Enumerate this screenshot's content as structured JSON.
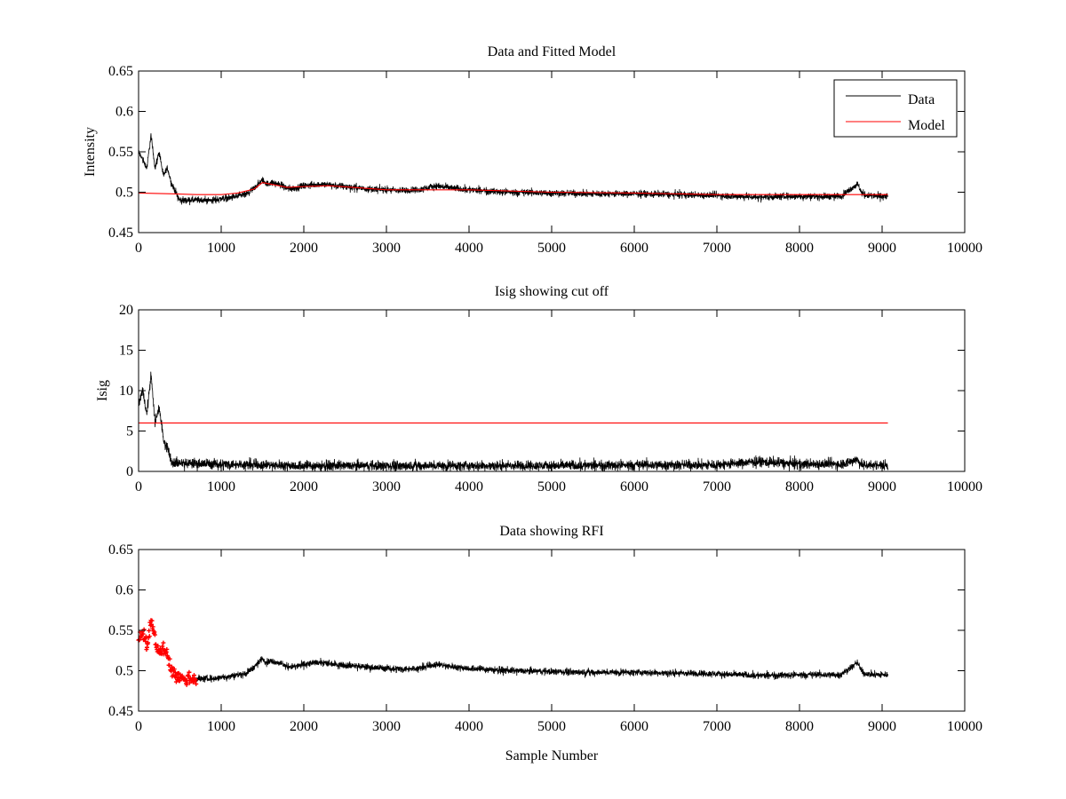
{
  "chart_data": [
    {
      "type": "line",
      "title": "Data and Fitted Model",
      "xlabel": "",
      "ylabel": "Intensity",
      "xlim": [
        0,
        10000
      ],
      "ylim": [
        0.45,
        0.65
      ],
      "xticks": [
        0,
        1000,
        2000,
        3000,
        4000,
        5000,
        6000,
        7000,
        8000,
        9000,
        10000
      ],
      "yticks": [
        0.45,
        0.5,
        0.55,
        0.6,
        0.65
      ],
      "xtick_labels": [
        "0",
        "1000",
        "2000",
        "3000",
        "4000",
        "5000",
        "6000",
        "7000",
        "8000",
        "9000",
        "10000"
      ],
      "ytick_labels": [
        "0.45",
        "0.5",
        "0.55",
        "0.6",
        "0.65"
      ],
      "legend": {
        "placement": "top-right",
        "entries": [
          "Data",
          "Model"
        ]
      },
      "series": [
        {
          "name": "Data",
          "color": "#000000",
          "x": [
            0,
            50,
            100,
            150,
            200,
            250,
            300,
            350,
            400,
            450,
            500,
            600,
            700,
            800,
            900,
            1000,
            1100,
            1200,
            1300,
            1400,
            1450,
            1500,
            1550,
            1600,
            1700,
            1800,
            1900,
            2000,
            2200,
            2400,
            2600,
            2800,
            3000,
            3200,
            3400,
            3600,
            3800,
            4000,
            4500,
            5000,
            5500,
            6000,
            6500,
            7000,
            7500,
            8000,
            8500,
            8700,
            8750,
            8800,
            9000,
            9070
          ],
          "y": [
            0.55,
            0.54,
            0.53,
            0.57,
            0.53,
            0.55,
            0.52,
            0.53,
            0.51,
            0.5,
            0.49,
            0.49,
            0.49,
            0.49,
            0.49,
            0.492,
            0.493,
            0.495,
            0.497,
            0.505,
            0.51,
            0.515,
            0.51,
            0.512,
            0.51,
            0.505,
            0.505,
            0.508,
            0.51,
            0.508,
            0.506,
            0.504,
            0.503,
            0.502,
            0.503,
            0.508,
            0.505,
            0.503,
            0.5,
            0.499,
            0.498,
            0.498,
            0.497,
            0.496,
            0.494,
            0.495,
            0.495,
            0.51,
            0.5,
            0.496,
            0.495,
            0.495
          ],
          "noise": 0.006
        },
        {
          "name": "Model",
          "color": "#ff0000",
          "x": [
            0,
            400,
            700,
            1000,
            1200,
            1400,
            1500,
            1600,
            1800,
            2000,
            2300,
            2600,
            3000,
            3500,
            4000,
            5000,
            6000,
            7000,
            8000,
            8500,
            9070
          ],
          "y": [
            0.499,
            0.498,
            0.497,
            0.497,
            0.499,
            0.504,
            0.512,
            0.51,
            0.506,
            0.507,
            0.508,
            0.506,
            0.503,
            0.503,
            0.503,
            0.5,
            0.499,
            0.497,
            0.497,
            0.497,
            0.497
          ]
        }
      ]
    },
    {
      "type": "line",
      "title": "Isig showing cut off",
      "xlabel": "",
      "ylabel": "Isig",
      "xlim": [
        0,
        10000
      ],
      "ylim": [
        0,
        20
      ],
      "xticks": [
        0,
        1000,
        2000,
        3000,
        4000,
        5000,
        6000,
        7000,
        8000,
        9000,
        10000
      ],
      "yticks": [
        0,
        5,
        10,
        15,
        20
      ],
      "xtick_labels": [
        "0",
        "1000",
        "2000",
        "3000",
        "4000",
        "5000",
        "6000",
        "7000",
        "8000",
        "9000",
        "10000"
      ],
      "ytick_labels": [
        "0",
        "5",
        "10",
        "15",
        "20"
      ],
      "series": [
        {
          "color": "#000000",
          "x": [
            0,
            50,
            100,
            150,
            200,
            250,
            300,
            350,
            400,
            500,
            1000,
            1500,
            2000,
            3000,
            4000,
            5000,
            6000,
            7000,
            7500,
            8000,
            8500,
            8700,
            8750,
            8800,
            9000,
            9070
          ],
          "y": [
            8,
            10,
            7,
            12,
            6,
            8,
            4,
            3,
            1.2,
            1.0,
            0.9,
            0.8,
            0.7,
            0.7,
            0.7,
            0.7,
            0.8,
            0.8,
            1.2,
            0.9,
            0.9,
            1.5,
            0.8,
            0.8,
            0.8,
            0.8
          ],
          "noise": 0.9
        },
        {
          "color": "#ff0000",
          "x": [
            0,
            9070
          ],
          "y": [
            6,
            6
          ]
        }
      ]
    },
    {
      "type": "line",
      "title": "Data showing RFI",
      "xlabel": "Sample Number",
      "ylabel": "",
      "xlim": [
        0,
        10000
      ],
      "ylim": [
        0.45,
        0.65
      ],
      "xticks": [
        0,
        1000,
        2000,
        3000,
        4000,
        5000,
        6000,
        7000,
        8000,
        9000,
        10000
      ],
      "yticks": [
        0.45,
        0.5,
        0.55,
        0.6,
        0.65
      ],
      "xtick_labels": [
        "0",
        "1000",
        "2000",
        "3000",
        "4000",
        "5000",
        "6000",
        "7000",
        "8000",
        "9000",
        "10000"
      ],
      "ytick_labels": [
        "0.45",
        "0.5",
        "0.55",
        "0.6",
        "0.65"
      ],
      "series": [
        {
          "color": "#000000",
          "x": [
            700,
            800,
            900,
            1000,
            1100,
            1200,
            1300,
            1400,
            1450,
            1500,
            1550,
            1600,
            1700,
            1800,
            1900,
            2000,
            2200,
            2400,
            2600,
            2800,
            3000,
            3200,
            3400,
            3600,
            3800,
            4000,
            4500,
            5000,
            5500,
            6000,
            6500,
            7000,
            7500,
            8000,
            8500,
            8700,
            8750,
            8800,
            9000,
            9070
          ],
          "y": [
            0.49,
            0.49,
            0.49,
            0.492,
            0.493,
            0.495,
            0.497,
            0.505,
            0.51,
            0.515,
            0.51,
            0.512,
            0.51,
            0.505,
            0.505,
            0.508,
            0.51,
            0.508,
            0.506,
            0.504,
            0.503,
            0.502,
            0.503,
            0.508,
            0.505,
            0.503,
            0.5,
            0.499,
            0.498,
            0.498,
            0.497,
            0.496,
            0.494,
            0.495,
            0.495,
            0.51,
            0.5,
            0.496,
            0.495,
            0.495
          ],
          "noise": 0.006
        },
        {
          "color": "#ff0000",
          "marker": "+",
          "x": [
            0,
            50,
            100,
            150,
            200,
            250,
            300,
            350,
            400,
            450,
            500,
            550,
            600,
            650,
            700
          ],
          "y": [
            0.54,
            0.55,
            0.53,
            0.56,
            0.54,
            0.52,
            0.53,
            0.52,
            0.5,
            0.495,
            0.49,
            0.49,
            0.49,
            0.49,
            0.49
          ],
          "noise": 0.012
        }
      ]
    }
  ]
}
